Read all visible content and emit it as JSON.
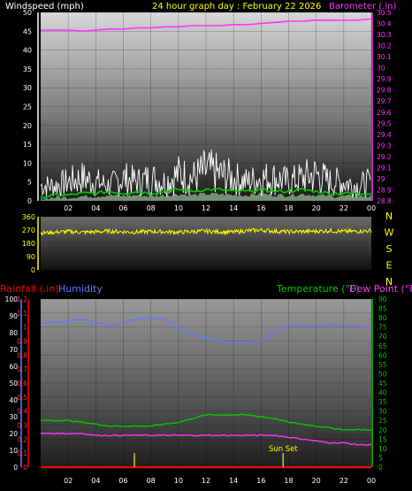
{
  "header": {
    "left_title": "Windspeed (mph)",
    "center_title": "24 hour graph day : February 22 2026",
    "right_title": "Barometer (.in)"
  },
  "x_ticks": [
    "02",
    "04",
    "06",
    "08",
    "10",
    "12",
    "14",
    "16",
    "18",
    "20",
    "22",
    "00"
  ],
  "colors": {
    "wind": "#ffffff",
    "gust_avg": "#00cc00",
    "barometer": "#ff33ff",
    "direction": "#ffff00",
    "humidity": "#6677ff",
    "temperature": "#00cc00",
    "dewpoint": "#ff33ff",
    "rainfall": "#ff0000",
    "sun_marker": "#cccc00"
  },
  "chart_data": [
    {
      "type": "line",
      "name": "wind_barometer",
      "title": "24 hour graph day : February 22 2026",
      "ylabel": "Windspeed (mph)",
      "ylabel_right": "Barometer (.in)",
      "ylim": [
        0,
        50
      ],
      "yticks": [
        0,
        5,
        10,
        15,
        20,
        25,
        30,
        35,
        40,
        45,
        50
      ],
      "ylim_right": [
        28.8,
        30.5
      ],
      "yticks_right": [
        "28.8",
        "28.9",
        "29",
        "29.1",
        "29.2",
        "29.3",
        "29.4",
        "29.5",
        "29.6",
        "29.7",
        "29.8",
        "29.9",
        "30",
        "30.1",
        "30.2",
        "30.3",
        "30.4",
        "30.5"
      ],
      "x": [
        0,
        1,
        2,
        3,
        4,
        5,
        6,
        7,
        8,
        9,
        10,
        11,
        12,
        13,
        14,
        15,
        16,
        17,
        18,
        19,
        20,
        21,
        22,
        23,
        24
      ],
      "series": [
        {
          "key": "wind",
          "values": [
            4,
            4,
            5,
            6,
            5,
            4,
            6,
            5,
            6,
            5,
            7,
            6,
            8,
            7,
            6,
            5,
            6,
            6,
            5,
            6,
            7,
            5,
            5,
            4,
            5
          ]
        },
        {
          "key": "gust_avg",
          "values": [
            1,
            1.5,
            1.5,
            2,
            2,
            2.5,
            2,
            2.5,
            2,
            2.5,
            3,
            2.5,
            3,
            3,
            2.5,
            2.5,
            3,
            2.5,
            2.5,
            3,
            2.5,
            2,
            2,
            2,
            2
          ]
        },
        {
          "key": "barometer",
          "values": [
            30.34,
            30.34,
            30.34,
            30.33,
            30.34,
            30.35,
            30.35,
            30.36,
            30.36,
            30.37,
            30.37,
            30.38,
            30.38,
            30.38,
            30.39,
            30.39,
            30.4,
            30.41,
            30.42,
            30.42,
            30.43,
            30.43,
            30.43,
            30.43,
            30.44
          ]
        }
      ]
    },
    {
      "type": "line",
      "name": "wind_direction",
      "ylim": [
        0,
        360
      ],
      "yticks": [
        "0",
        "90",
        "180",
        "270",
        "360"
      ],
      "direction_labels": [
        "N",
        "W",
        "S",
        "E",
        "N"
      ],
      "x": [
        0,
        1,
        2,
        3,
        4,
        5,
        6,
        7,
        8,
        9,
        10,
        11,
        12,
        13,
        14,
        15,
        16,
        17,
        18,
        19,
        20,
        21,
        22,
        23,
        24
      ],
      "series": [
        {
          "key": "direction",
          "values": [
            250,
            255,
            260,
            255,
            258,
            262,
            258,
            256,
            260,
            258,
            255,
            260,
            262,
            258,
            256,
            265,
            270,
            262,
            258,
            260,
            262,
            265,
            260,
            262,
            265
          ]
        }
      ]
    },
    {
      "type": "line",
      "name": "temp_humidity_rain",
      "ylabel_left_outer": "Rainfall (.in)",
      "ylabel_left_inner": "Humidity",
      "ylabel_right_a": "Temperature (°F)",
      "ylabel_right_b": "Dew Point (°F)",
      "ylim_rain": [
        0,
        1.2
      ],
      "yticks_rain": [
        "0",
        "0.1",
        "0.2",
        "0.3",
        "0.4",
        "0.5",
        "0.6",
        "0.7",
        "0.8",
        "0.9",
        "1",
        "1.1",
        "1.2"
      ],
      "ylim_humidity": [
        0,
        100
      ],
      "yticks_humidity": [
        "0",
        "10",
        "20",
        "30",
        "40",
        "50",
        "60",
        "70",
        "80",
        "90",
        "100"
      ],
      "ylim_temp": [
        0,
        90
      ],
      "yticks_temp": [
        "0",
        "5",
        "10",
        "15",
        "20",
        "25",
        "30",
        "35",
        "40",
        "45",
        "50",
        "55",
        "60",
        "65",
        "70",
        "75",
        "80",
        "85",
        "90"
      ],
      "x": [
        0,
        1,
        2,
        3,
        4,
        5,
        6,
        7,
        8,
        9,
        10,
        11,
        12,
        13,
        14,
        15,
        16,
        17,
        18,
        19,
        20,
        21,
        22,
        23,
        24
      ],
      "series": [
        {
          "key": "humidity",
          "values": [
            86,
            86,
            87,
            88,
            86,
            84,
            86,
            88,
            89,
            88,
            83,
            79,
            77,
            75,
            74,
            74,
            75,
            80,
            85,
            84,
            84,
            85,
            84,
            84,
            83
          ]
        },
        {
          "key": "temperature",
          "values": [
            25,
            25,
            25,
            24,
            23,
            22,
            22,
            22,
            22,
            23,
            24,
            26,
            28,
            28,
            28,
            28,
            27,
            26,
            24,
            23,
            22,
            21,
            20,
            20,
            20
          ]
        },
        {
          "key": "dewpoint",
          "values": [
            18,
            18,
            18,
            18,
            17,
            17,
            17,
            17,
            17,
            17,
            17,
            17,
            17,
            17,
            17,
            17,
            17,
            17,
            16,
            15,
            14,
            13,
            13,
            12,
            12
          ]
        },
        {
          "key": "rainfall",
          "values": [
            0,
            0,
            0,
            0,
            0,
            0,
            0,
            0,
            0,
            0,
            0,
            0,
            0,
            0,
            0,
            0,
            0,
            0,
            0,
            0,
            0,
            0,
            0,
            0,
            0
          ]
        }
      ],
      "sun_markers": [
        {
          "x": 6.8,
          "label": ""
        },
        {
          "x": 17.6,
          "label": "Sun Set"
        }
      ]
    }
  ]
}
